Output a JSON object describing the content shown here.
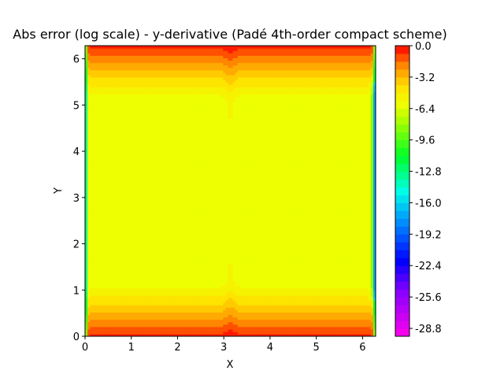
{
  "chart_data": {
    "type": "heatmap",
    "subtype": "filled-contour",
    "title": "Abs error (log scale) - y-derivative (Padé 4th-order compact scheme)",
    "xlabel": "X",
    "ylabel": "Y",
    "xlim": [
      0,
      6.283
    ],
    "ylim": [
      0,
      6.283
    ],
    "x_ticks": [
      "0",
      "1",
      "2",
      "3",
      "4",
      "5",
      "6"
    ],
    "y_ticks": [
      "0",
      "1",
      "2",
      "3",
      "4",
      "5",
      "6"
    ],
    "grid": false,
    "colormap": "gist_rainbow",
    "colorbar": {
      "range": [
        -29.6,
        0
      ],
      "levels": 37,
      "ticks": [
        "0.0",
        "-3.2",
        "-6.4",
        "-9.6",
        "-12.8",
        "-16.0",
        "-19.2",
        "-22.4",
        "-25.6",
        "-28.8"
      ],
      "tick_values": [
        0.0,
        -3.2,
        -6.4,
        -9.6,
        -12.8,
        -16.0,
        -19.2,
        -22.4,
        -25.6,
        -28.8
      ]
    },
    "field_description": {
      "max_error_log10": 0,
      "interior_plateau_log10": -6.0,
      "minimum_near_x_boundaries_log10": -17
    }
  }
}
